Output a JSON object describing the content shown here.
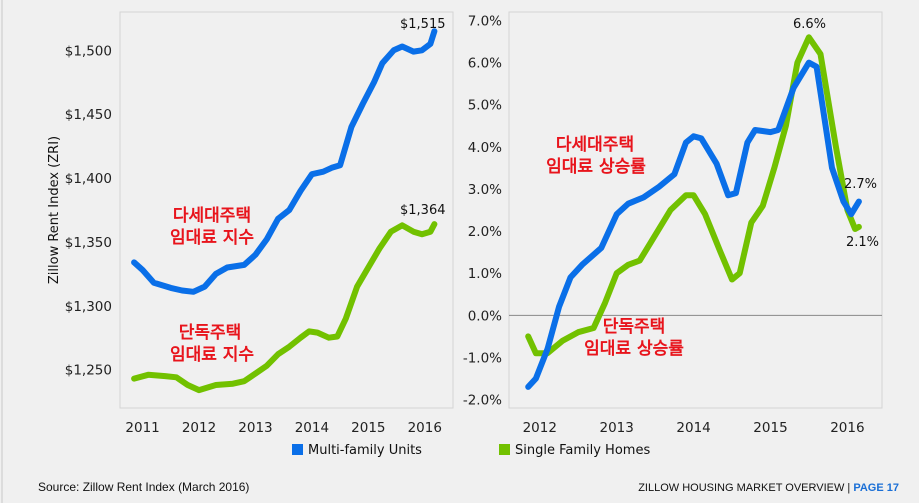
{
  "colors": {
    "multi": "#0a6fe8",
    "single": "#72c100",
    "annotation": "#e8141c",
    "page_accent": "#1a6fd6"
  },
  "legend": [
    {
      "name": "Multi-family Units",
      "color": "#0a6fe8"
    },
    {
      "name": "Single Family Homes",
      "color": "#72c100"
    }
  ],
  "footer": {
    "source": "Source: Zillow Rent Index (March 2016)",
    "title": "ZILLOW HOUSING MARKET OVERVIEW |",
    "page": "PAGE 17"
  },
  "chart_data": [
    {
      "type": "line",
      "title": "",
      "ylabel": "Zillow Rent Index (ZRI)",
      "xlabel": "",
      "ylim": [
        1220,
        1530
      ],
      "xlim": [
        2010.6,
        2016.5
      ],
      "yticks": [
        1250,
        1300,
        1350,
        1400,
        1450,
        1500
      ],
      "ytick_labels": [
        "$1,250",
        "$1,300",
        "$1,350",
        "$1,400",
        "$1,450",
        "$1,500"
      ],
      "xticks": [
        2011,
        2012,
        2013,
        2014,
        2015,
        2016
      ],
      "xtick_labels": [
        "2011",
        "2012",
        "2013",
        "2014",
        "2015",
        "2016"
      ],
      "annotations": [
        {
          "text": "$1,515",
          "series": "Multi-family Units"
        },
        {
          "text": "$1,364",
          "series": "Single Family Homes"
        },
        {
          "text": "다세대주택",
          "series": "Multi-family Units",
          "line": 1
        },
        {
          "text": "임대료 지수",
          "series": "Multi-family Units",
          "line": 2
        },
        {
          "text": "단독주택",
          "series": "Single Family Homes",
          "line": 1
        },
        {
          "text": "임대료 지수",
          "series": "Single Family Homes",
          "line": 2
        }
      ],
      "series": [
        {
          "name": "Multi-family Units",
          "x": [
            2010.85,
            2011.0,
            2011.2,
            2011.5,
            2011.7,
            2011.9,
            2012.1,
            2012.3,
            2012.5,
            2012.8,
            2013.0,
            2013.2,
            2013.4,
            2013.6,
            2013.8,
            2014.0,
            2014.2,
            2014.35,
            2014.5,
            2014.7,
            2014.9,
            2015.1,
            2015.25,
            2015.45,
            2015.6,
            2015.8,
            2015.95,
            2016.1,
            2016.17
          ],
          "y": [
            1334,
            1328,
            1318,
            1314,
            1312,
            1311,
            1315,
            1325,
            1330,
            1332,
            1340,
            1352,
            1368,
            1375,
            1390,
            1403,
            1405,
            1408,
            1410,
            1440,
            1458,
            1475,
            1490,
            1500,
            1503,
            1499,
            1500,
            1505,
            1515
          ]
        },
        {
          "name": "Single Family Homes",
          "x": [
            2010.85,
            2011.1,
            2011.4,
            2011.6,
            2011.8,
            2012.0,
            2012.3,
            2012.6,
            2012.8,
            2013.0,
            2013.2,
            2013.4,
            2013.6,
            2013.8,
            2013.95,
            2014.1,
            2014.3,
            2014.45,
            2014.6,
            2014.8,
            2015.0,
            2015.2,
            2015.4,
            2015.6,
            2015.8,
            2015.95,
            2016.1,
            2016.17
          ],
          "y": [
            1243,
            1246,
            1245,
            1244,
            1238,
            1234,
            1238,
            1239,
            1241,
            1247,
            1253,
            1262,
            1268,
            1275,
            1280,
            1279,
            1275,
            1276,
            1290,
            1315,
            1330,
            1345,
            1358,
            1363,
            1358,
            1356,
            1358,
            1364
          ]
        }
      ]
    },
    {
      "type": "line",
      "title": "",
      "ylabel": "",
      "xlabel": "",
      "ylim": [
        -2.2,
        7.2
      ],
      "xlim": [
        2011.6,
        2016.45
      ],
      "yticks": [
        -2,
        -1,
        0,
        1,
        2,
        3,
        4,
        5,
        6,
        7
      ],
      "ytick_labels": [
        "-2.0%",
        "-1.0%",
        "0.0%",
        "1.0%",
        "2.0%",
        "3.0%",
        "4.0%",
        "5.0%",
        "6.0%",
        "7.0%"
      ],
      "xticks": [
        2012,
        2013,
        2014,
        2015,
        2016
      ],
      "xtick_labels": [
        "2012",
        "2013",
        "2014",
        "2015",
        "2016"
      ],
      "reference_line": 0,
      "annotations": [
        {
          "text": "6.6%",
          "series": "Single Family Homes"
        },
        {
          "text": "2.7%",
          "series": "Multi-family Units"
        },
        {
          "text": "2.1%",
          "series": "Single Family Homes"
        },
        {
          "text": "다세대주택",
          "series": "Multi-family Units",
          "line": 1
        },
        {
          "text": "임대료 상승률",
          "series": "Multi-family Units",
          "line": 2
        },
        {
          "text": "단독주택",
          "series": "Single Family Homes",
          "line": 1
        },
        {
          "text": "임대료 상승률",
          "series": "Single Family Homes",
          "line": 2
        }
      ],
      "series": [
        {
          "name": "Multi-family Units",
          "x": [
            2011.85,
            2011.95,
            2012.1,
            2012.25,
            2012.4,
            2012.55,
            2012.8,
            2013.0,
            2013.15,
            2013.35,
            2013.55,
            2013.75,
            2013.9,
            2014.0,
            2014.1,
            2014.3,
            2014.45,
            2014.55,
            2014.7,
            2014.8,
            2015.0,
            2015.1,
            2015.3,
            2015.5,
            2015.6,
            2015.8,
            2015.95,
            2016.05,
            2016.15
          ],
          "y": [
            -1.7,
            -1.5,
            -0.8,
            0.2,
            0.9,
            1.2,
            1.6,
            2.4,
            2.65,
            2.8,
            3.05,
            3.35,
            4.1,
            4.25,
            4.2,
            3.6,
            2.85,
            2.9,
            4.1,
            4.4,
            4.35,
            4.4,
            5.4,
            6.0,
            5.9,
            3.5,
            2.7,
            2.4,
            2.7
          ]
        },
        {
          "name": "Single Family Homes",
          "x": [
            2011.85,
            2011.95,
            2012.1,
            2012.3,
            2012.5,
            2012.7,
            2012.85,
            2013.0,
            2013.15,
            2013.3,
            2013.5,
            2013.7,
            2013.9,
            2014.0,
            2014.15,
            2014.35,
            2014.5,
            2014.6,
            2014.75,
            2014.9,
            2015.05,
            2015.2,
            2015.35,
            2015.5,
            2015.65,
            2015.85,
            2016.0,
            2016.1,
            2016.15
          ],
          "y": [
            -0.5,
            -0.9,
            -0.9,
            -0.6,
            -0.4,
            -0.3,
            0.3,
            1.0,
            1.2,
            1.3,
            1.9,
            2.5,
            2.85,
            2.85,
            2.4,
            1.5,
            0.85,
            1.0,
            2.2,
            2.6,
            3.5,
            4.5,
            6.0,
            6.6,
            6.2,
            4.0,
            2.5,
            2.05,
            2.1
          ]
        }
      ]
    }
  ]
}
